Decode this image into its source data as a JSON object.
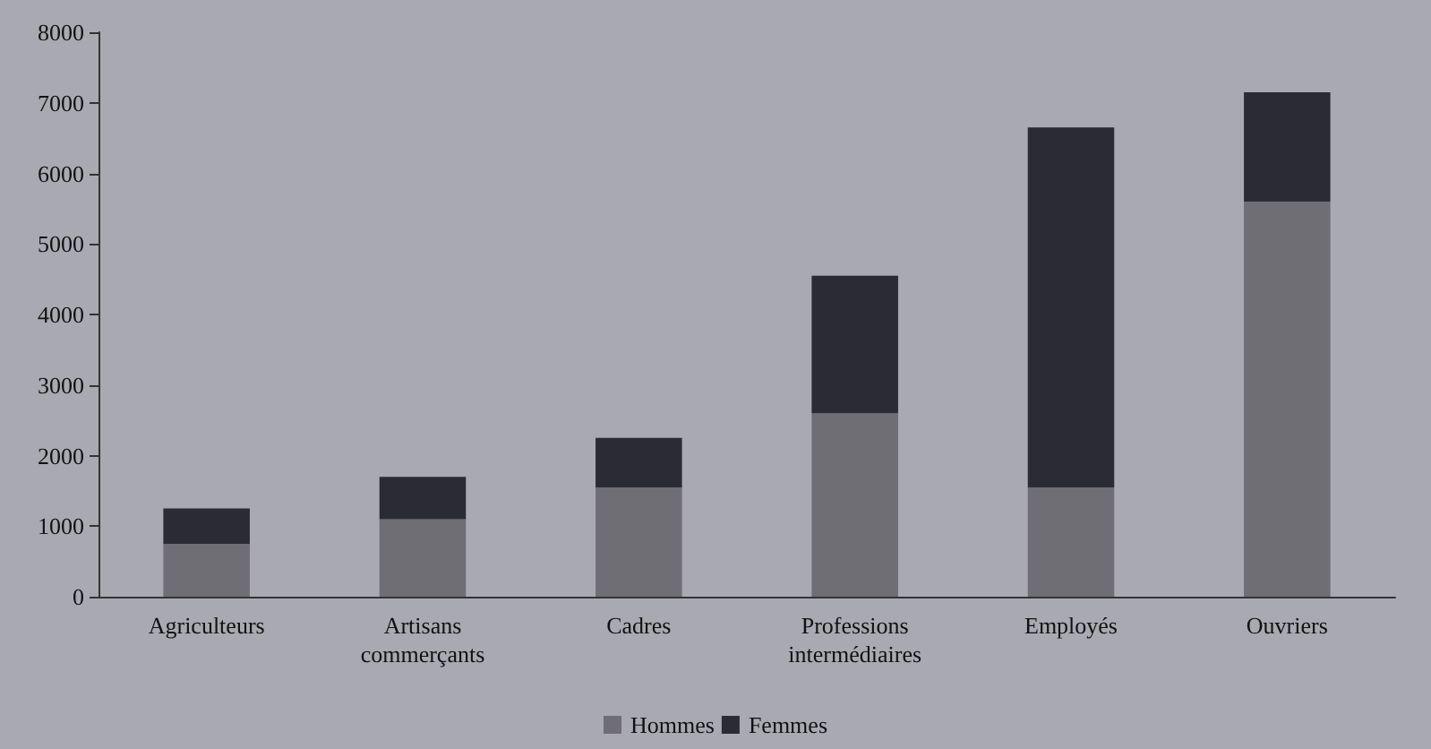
{
  "chart_data": {
    "type": "bar",
    "stacked": true,
    "categories": [
      "Agriculteurs",
      "Artisans\ncommerçants",
      "Cadres",
      "Professions\nintermédiaires",
      "Employés",
      "Ouvriers"
    ],
    "series": [
      {
        "name": "Hommes",
        "color": "#6e6e74",
        "values": [
          750,
          1100,
          1550,
          2600,
          1550,
          5600
        ]
      },
      {
        "name": "Femmes",
        "color": "#2b2b34",
        "values": [
          500,
          600,
          700,
          1950,
          5100,
          1550
        ]
      }
    ],
    "ylim": [
      0,
      8000
    ],
    "yticks": [
      0,
      1000,
      2000,
      3000,
      4000,
      5000,
      6000,
      7000,
      8000
    ],
    "grid": false,
    "legend": "bottom"
  }
}
